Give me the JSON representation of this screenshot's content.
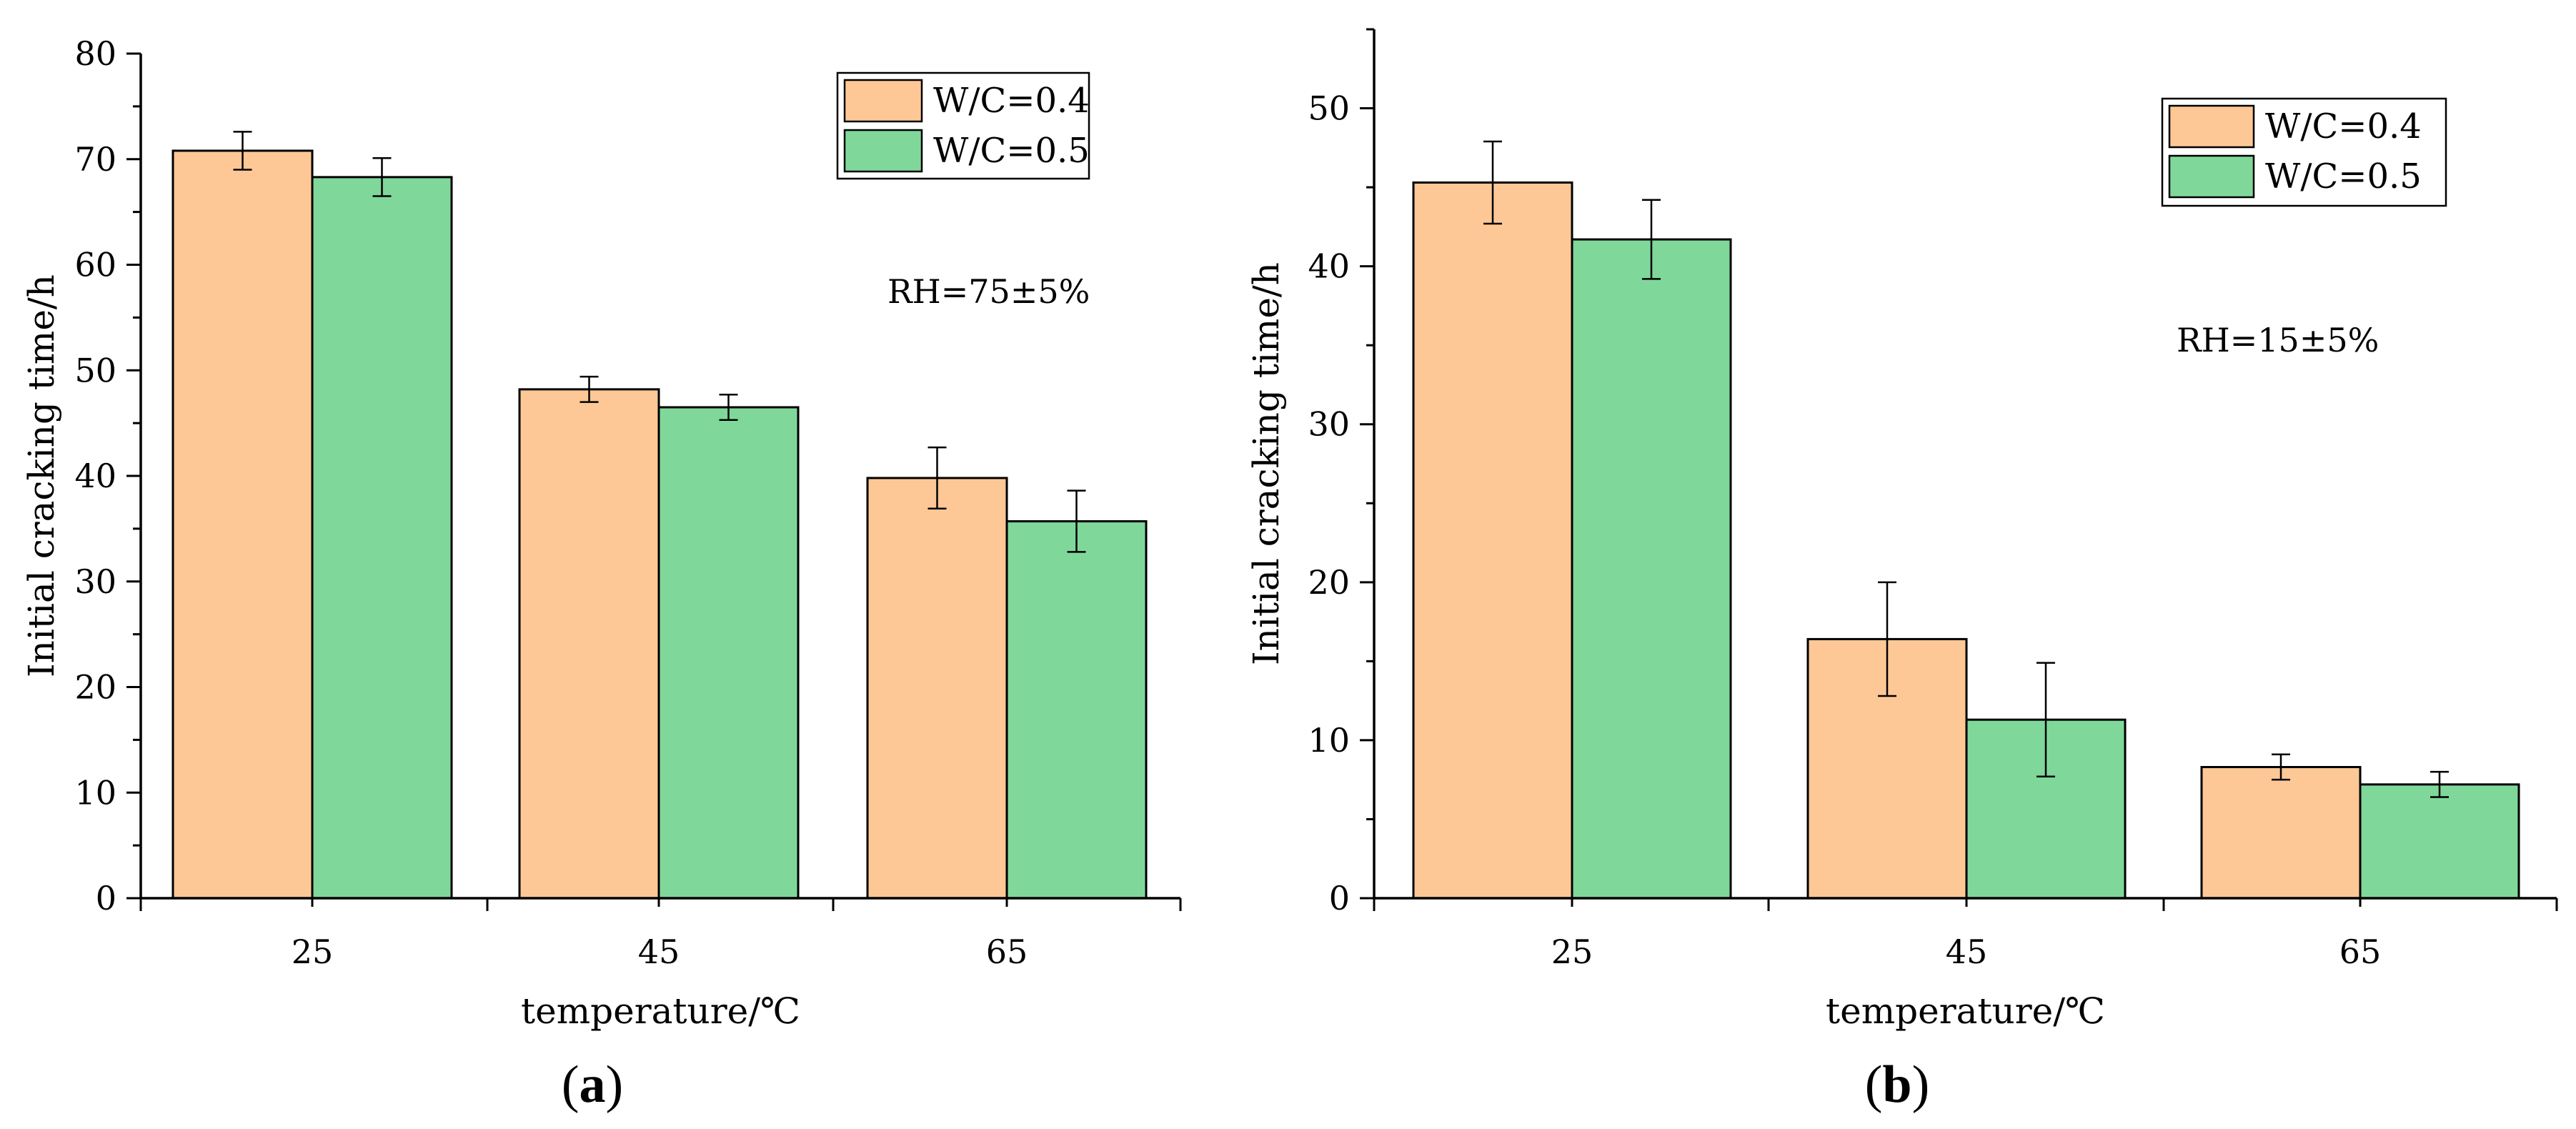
{
  "chart_data": [
    {
      "type": "bar",
      "panel_label": "(a)",
      "panel_letter": "a",
      "xlabel": "temperature/℃",
      "ylabel": "Initial cracking time/h",
      "categories": [
        "25",
        "45",
        "65"
      ],
      "ylim": [
        0,
        80
      ],
      "yticks": [
        0,
        10,
        20,
        30,
        40,
        50,
        60,
        70,
        80
      ],
      "annotation": "RH=75±5%",
      "legend_position": "top-right",
      "series": [
        {
          "name": "W/C=0.4",
          "color": "#FDC896",
          "values": [
            70.8,
            48.2,
            39.8
          ],
          "errors": [
            1.8,
            1.2,
            2.9
          ]
        },
        {
          "name": "W/C=0.5",
          "color": "#7FD89A",
          "values": [
            68.3,
            46.5,
            35.7
          ],
          "errors": [
            1.8,
            1.2,
            2.9
          ]
        }
      ]
    },
    {
      "type": "bar",
      "panel_label": "(b)",
      "panel_letter": "b",
      "xlabel": "temperature/℃",
      "ylabel": "Initial cracking time/h",
      "categories": [
        "25",
        "45",
        "65"
      ],
      "ylim": [
        0,
        55
      ],
      "yticks": [
        0,
        10,
        20,
        30,
        40,
        50
      ],
      "annotation": "RH=15±5%",
      "legend_position": "top-right",
      "series": [
        {
          "name": "W/C=0.4",
          "color": "#FDC896",
          "values": [
            45.3,
            16.4,
            8.3
          ],
          "errors": [
            2.6,
            3.6,
            0.8
          ]
        },
        {
          "name": "W/C=0.5",
          "color": "#7FD89A",
          "values": [
            41.7,
            11.3,
            7.2
          ],
          "errors": [
            2.5,
            3.6,
            0.8
          ]
        }
      ]
    }
  ]
}
